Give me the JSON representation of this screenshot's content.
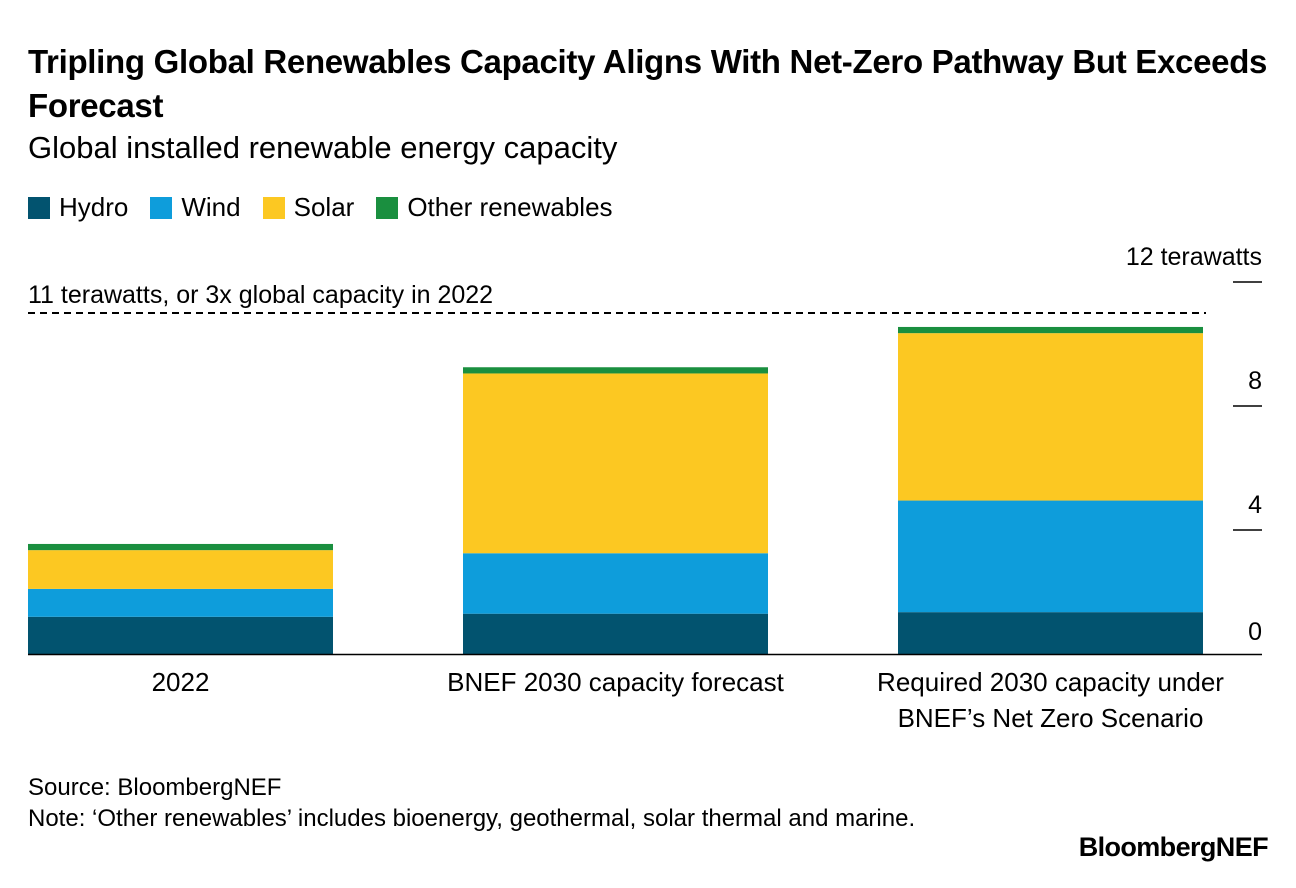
{
  "chart_data": {
    "type": "bar",
    "stacked": true,
    "title": "Tripling Global Renewables Capacity Aligns With Net-Zero Pathway But Exceeds Forecast",
    "subtitle": "Global installed renewable energy capacity",
    "categories": [
      [
        "2022"
      ],
      [
        "BNEF 2030 capacity forecast"
      ],
      [
        "Required 2030 capacity under",
        "BNEF’s Net Zero Scenario"
      ]
    ],
    "series": [
      {
        "name": "Hydro",
        "color": "#02536f",
        "values": [
          1.2,
          1.3,
          1.35
        ]
      },
      {
        "name": "Wind",
        "color": "#0e9ddb",
        "values": [
          0.9,
          1.95,
          3.6
        ]
      },
      {
        "name": "Solar",
        "color": "#fcc822",
        "values": [
          1.25,
          5.8,
          5.4
        ]
      },
      {
        "name": "Other renewables",
        "color": "#1a8f3f",
        "values": [
          0.2,
          0.2,
          0.2
        ]
      }
    ],
    "ylim": [
      0,
      12
    ],
    "y_ticks": [
      {
        "value": 0,
        "label": "0"
      },
      {
        "value": 4,
        "label": "4"
      },
      {
        "value": 8,
        "label": "8"
      },
      {
        "value": 12,
        "label": "12 terawatts"
      }
    ],
    "reference_line": {
      "value": 11,
      "label": "11 terawatts, or 3x global capacity in 2022"
    },
    "legend_position": "top-left",
    "grid": false
  },
  "footer": {
    "source": "Source: BloombergNEF",
    "note": "Note: ‘Other renewables’ includes bioenergy, geothermal, solar thermal and marine.",
    "logo": "BloombergNEF"
  }
}
